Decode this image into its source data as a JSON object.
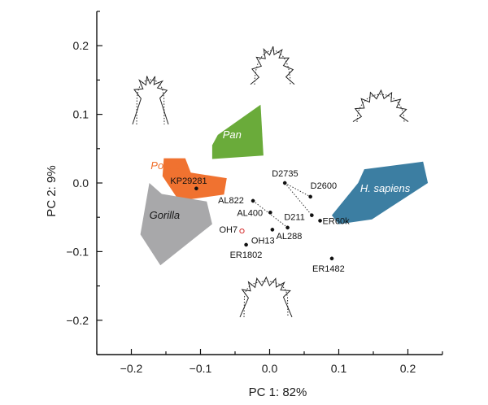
{
  "chart_data": {
    "type": "scatter",
    "title": "",
    "xlabel": "PC 1: 82%",
    "ylabel": "PC 2: 9%",
    "xlim": [
      -0.25,
      0.25
    ],
    "ylim": [
      -0.25,
      0.25
    ],
    "xticks": [
      {
        "v": -0.2,
        "label": "−0.2"
      },
      {
        "v": -0.1,
        "label": "−0.1"
      },
      {
        "v": 0.0,
        "label": "0.0"
      },
      {
        "v": 0.1,
        "label": "0.1"
      },
      {
        "v": 0.2,
        "label": "0.2"
      }
    ],
    "yticks": [
      {
        "v": 0.2,
        "label": "0.2"
      },
      {
        "v": 0.1,
        "label": "0.1"
      },
      {
        "v": 0.0,
        "label": "0.0"
      },
      {
        "v": -0.1,
        "label": "−0.1"
      },
      {
        "v": -0.2,
        "label": "−0.2"
      }
    ],
    "groups": [
      {
        "name": "Pan",
        "color": "#6aab3a",
        "label_color": "#ffffff",
        "label_at": [
          -0.068,
          0.065
        ],
        "hull": [
          [
            -0.075,
            0.07
          ],
          [
            -0.013,
            0.114
          ],
          [
            -0.009,
            0.04
          ],
          [
            -0.083,
            0.035
          ],
          [
            -0.083,
            0.055
          ]
        ]
      },
      {
        "name": "Pongo",
        "color": "#f07230",
        "label_color": "#f07230",
        "label_at": [
          -0.172,
          0.02
        ],
        "hull": [
          [
            -0.153,
            0.036
          ],
          [
            -0.122,
            0.036
          ],
          [
            -0.114,
            0.015
          ],
          [
            -0.062,
            0.007
          ],
          [
            -0.066,
            -0.017
          ],
          [
            -0.131,
            -0.026
          ],
          [
            -0.155,
            0.01
          ]
        ]
      },
      {
        "name": "Gorilla",
        "color": "#a8a8aa",
        "label_color": "#1a1a1a",
        "label_at": [
          -0.174,
          -0.052
        ],
        "hull": [
          [
            -0.174,
            0.0
          ],
          [
            -0.156,
            -0.016
          ],
          [
            -0.091,
            -0.027
          ],
          [
            -0.083,
            -0.06
          ],
          [
            -0.158,
            -0.12
          ],
          [
            -0.187,
            -0.075
          ]
        ]
      },
      {
        "name": "H. sapiens",
        "color": "#3c7ea2",
        "label_color": "#ffffff",
        "label_at": [
          0.131,
          -0.013
        ],
        "hull": [
          [
            0.137,
            0.02
          ],
          [
            0.222,
            0.031
          ],
          [
            0.229,
            0.0
          ],
          [
            0.148,
            -0.053
          ],
          [
            0.1,
            -0.06
          ],
          [
            0.09,
            -0.047
          ],
          [
            0.128,
            0.0
          ]
        ]
      }
    ],
    "specimens": [
      {
        "name": "KP29281",
        "x": -0.106,
        "y": -0.008,
        "color": "#111111",
        "open": false
      },
      {
        "name": "D2735",
        "x": 0.022,
        "y": 0.0,
        "color": "#111111",
        "open": false
      },
      {
        "name": "D2600",
        "x": 0.059,
        "y": -0.02,
        "color": "#111111",
        "open": false
      },
      {
        "name": "AL822",
        "x": -0.024,
        "y": -0.026,
        "color": "#111111",
        "open": false
      },
      {
        "name": "AL400",
        "x": 0.001,
        "y": -0.043,
        "color": "#111111",
        "open": false
      },
      {
        "name": "D211",
        "x": 0.061,
        "y": -0.047,
        "color": "#111111",
        "open": false
      },
      {
        "name": "ER60k",
        "x": 0.073,
        "y": -0.055,
        "color": "#111111",
        "open": false
      },
      {
        "name": "OH7",
        "x": -0.04,
        "y": -0.07,
        "color": "#d42b2b",
        "open": true
      },
      {
        "name": "OH13",
        "x": 0.004,
        "y": -0.068,
        "color": "#111111",
        "open": false
      },
      {
        "name": "AL288",
        "x": 0.026,
        "y": -0.065,
        "color": "#111111",
        "open": false
      },
      {
        "name": "ER1802",
        "x": -0.034,
        "y": -0.09,
        "color": "#111111",
        "open": false
      },
      {
        "name": "ER1482",
        "x": 0.09,
        "y": -0.11,
        "color": "#111111",
        "open": false
      }
    ],
    "dotted_links": [
      [
        "D2735",
        "D2600"
      ],
      [
        "D2735",
        "D211"
      ],
      [
        "AL822",
        "AL288"
      ]
    ]
  }
}
